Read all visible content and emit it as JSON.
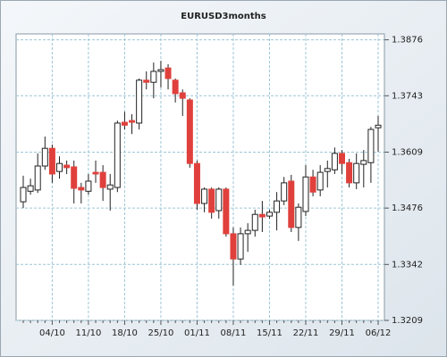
{
  "chart_data": {
    "type": "candlestick",
    "title": "EURUSD3months",
    "categories": [
      null,
      null,
      null,
      null,
      "04/10",
      null,
      null,
      null,
      null,
      "11/10",
      null,
      null,
      null,
      null,
      "18/10",
      null,
      null,
      null,
      null,
      "25/10",
      null,
      null,
      null,
      null,
      "01/11",
      null,
      null,
      null,
      null,
      "08/11",
      null,
      null,
      null,
      null,
      "15/11",
      null,
      null,
      null,
      null,
      "22/11",
      null,
      null,
      null,
      null,
      "29/11",
      null,
      null,
      null,
      null,
      "06/12"
    ],
    "open": [
      1.3491,
      1.3516,
      1.3519,
      1.3576,
      1.3618,
      1.3563,
      1.3578,
      1.3574,
      1.3525,
      1.3516,
      1.3561,
      1.3561,
      1.3521,
      1.3525,
      1.368,
      1.3684,
      1.3678,
      1.378,
      1.3775,
      1.3801,
      1.3809,
      1.378,
      1.375,
      1.3733,
      1.3582,
      1.3487,
      1.3521,
      1.347,
      1.3521,
      1.3415,
      1.3355,
      1.3415,
      1.3423,
      1.3461,
      1.3457,
      1.3466,
      1.3493,
      1.354,
      1.343,
      1.3468,
      1.355,
      1.3519,
      1.3563,
      1.3567,
      1.3606,
      1.3584,
      1.3536,
      1.358,
      1.3584,
      1.3667
    ],
    "high": [
      1.3553,
      1.3546,
      1.3606,
      1.3646,
      1.3627,
      1.3599,
      1.3589,
      1.3589,
      1.3536,
      1.3557,
      1.3589,
      1.3578,
      1.3557,
      1.3684,
      1.3705,
      1.3699,
      1.3784,
      1.3801,
      1.3822,
      1.3826,
      1.3818,
      1.3784,
      1.3758,
      1.3737,
      1.3589,
      1.3525,
      1.3525,
      1.3525,
      1.3525,
      1.343,
      1.343,
      1.344,
      1.3472,
      1.3493,
      1.3472,
      1.3514,
      1.355,
      1.3555,
      1.3487,
      1.3578,
      1.3567,
      1.3578,
      1.3589,
      1.362,
      1.3614,
      1.3593,
      1.3606,
      1.3614,
      1.3669,
      1.3695
    ],
    "low": [
      1.3476,
      1.3508,
      1.3512,
      1.3567,
      1.3536,
      1.3546,
      1.3557,
      1.3487,
      1.3487,
      1.3508,
      1.3536,
      1.3493,
      1.347,
      1.3514,
      1.3663,
      1.3652,
      1.3663,
      1.3758,
      1.3737,
      1.3763,
      1.3758,
      1.3727,
      1.3695,
      1.3572,
      1.3472,
      1.3466,
      1.3451,
      1.3451,
      1.3408,
      1.3292,
      1.3341,
      1.3372,
      1.3408,
      1.3419,
      1.3451,
      1.3423,
      1.3483,
      1.3419,
      1.3398,
      1.3457,
      1.3504,
      1.3504,
      1.3525,
      1.3557,
      1.3557,
      1.3525,
      1.3521,
      1.3525,
      1.3536,
      1.361
    ],
    "close": [
      1.3525,
      1.3529,
      1.3576,
      1.3618,
      1.3557,
      1.3582,
      1.3572,
      1.3523,
      1.3519,
      1.354,
      1.3557,
      1.3525,
      1.3531,
      1.3678,
      1.3673,
      1.368,
      1.378,
      1.3775,
      1.3801,
      1.3805,
      1.3784,
      1.3748,
      1.3737,
      1.3582,
      1.3487,
      1.3521,
      1.3466,
      1.3521,
      1.3415,
      1.3355,
      1.3415,
      1.3423,
      1.3461,
      1.3455,
      1.3466,
      1.3493,
      1.3536,
      1.343,
      1.3478,
      1.355,
      1.3514,
      1.3561,
      1.357,
      1.3606,
      1.3582,
      1.3536,
      1.3582,
      1.3589,
      1.3663,
      1.3673
    ],
    "up_color": "#ffffff",
    "down_color": "#e0403c",
    "ylim": [
      1.3209,
      1.389
    ],
    "yticks": [
      1.3209,
      1.3342,
      1.3476,
      1.3609,
      1.3743,
      1.3876
    ],
    "grid": true
  }
}
